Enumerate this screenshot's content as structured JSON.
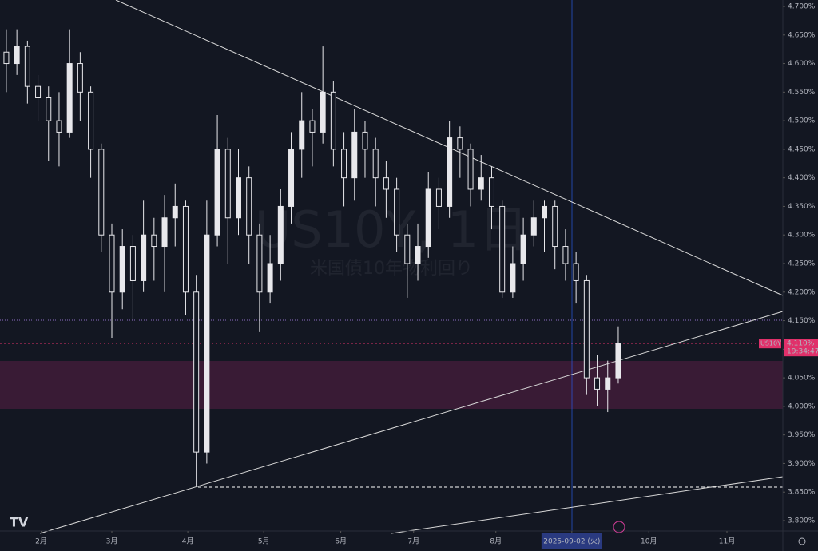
{
  "chart_data": {
    "type": "candlestick",
    "symbol": "US10Y",
    "watermark": "US10Y, 1日",
    "watermark_sub": "米国債10年物利回り",
    "color": "#e8e8ec",
    "zone_color": "#e8e8ec",
    "last_value": {
      "value": 4.11,
      "label": "4.110%"
    },
    "countdown": "19:34:47",
    "xlim": [
      -0.6,
      73.6
    ],
    "ylim": [
      3.8,
      4.7
    ],
    "xticks": [
      {
        "value": 3.3,
        "label": "2月"
      },
      {
        "value": 10,
        "label": "3月"
      },
      {
        "value": 17.2,
        "label": "4月"
      },
      {
        "value": 24.4,
        "label": "5月"
      },
      {
        "value": 31.7,
        "label": "6月"
      },
      {
        "value": 38.6,
        "label": "7月"
      },
      {
        "value": 46.4,
        "label": "8月"
      },
      {
        "value": 53.6,
        "label": "2025-09-02 (火)"
      },
      {
        "value": 60.9,
        "label": "10月"
      },
      {
        "value": 68.3,
        "label": "11月"
      }
    ],
    "yticks": [
      {
        "value": 3.8,
        "label": "3.800%"
      },
      {
        "value": 3.85,
        "label": "3.850%"
      },
      {
        "value": 3.9,
        "label": "3.900%"
      },
      {
        "value": 3.95,
        "label": "3.950%"
      },
      {
        "value": 4.0,
        "label": "4.000%"
      },
      {
        "value": 4.05,
        "label": "4.050%"
      },
      {
        "value": 4.1,
        "label": "4.100%"
      },
      {
        "value": 4.15,
        "label": "4.150%"
      },
      {
        "value": 4.2,
        "label": "4.200%"
      },
      {
        "value": 4.25,
        "label": "4.250%"
      },
      {
        "value": 4.3,
        "label": "4.300%"
      },
      {
        "value": 4.35,
        "label": "4.350%"
      },
      {
        "value": 4.4,
        "label": "4.400%"
      },
      {
        "value": 4.45,
        "label": "4.450%"
      },
      {
        "value": 4.5,
        "label": "4.500%"
      },
      {
        "value": 4.55,
        "label": "4.550%"
      },
      {
        "value": 4.6,
        "label": "4.600%"
      },
      {
        "value": 4.65,
        "label": "4.650%"
      },
      {
        "value": 4.7,
        "label": "4.700%"
      }
    ],
    "candles": [
      [
        4.62,
        4.66,
        4.55,
        4.6
      ],
      [
        4.6,
        4.66,
        4.58,
        4.63
      ],
      [
        4.63,
        4.64,
        4.53,
        4.56
      ],
      [
        4.56,
        4.58,
        4.5,
        4.54
      ],
      [
        4.54,
        4.56,
        4.43,
        4.5
      ],
      [
        4.5,
        4.55,
        4.42,
        4.48
      ],
      [
        4.48,
        4.66,
        4.47,
        4.6
      ],
      [
        4.6,
        4.62,
        4.5,
        4.55
      ],
      [
        4.55,
        4.56,
        4.4,
        4.45
      ],
      [
        4.45,
        4.46,
        4.27,
        4.3
      ],
      [
        4.3,
        4.32,
        4.12,
        4.2
      ],
      [
        4.2,
        4.31,
        4.17,
        4.28
      ],
      [
        4.28,
        4.3,
        4.15,
        4.22
      ],
      [
        4.22,
        4.36,
        4.2,
        4.3
      ],
      [
        4.3,
        4.33,
        4.22,
        4.28
      ],
      [
        4.28,
        4.37,
        4.2,
        4.33
      ],
      [
        4.33,
        4.39,
        4.28,
        4.35
      ],
      [
        4.35,
        4.36,
        4.16,
        4.2
      ],
      [
        4.2,
        4.23,
        3.86,
        3.92
      ],
      [
        3.92,
        4.36,
        3.9,
        4.3
      ],
      [
        4.3,
        4.51,
        4.28,
        4.45
      ],
      [
        4.45,
        4.47,
        4.25,
        4.33
      ],
      [
        4.33,
        4.45,
        4.3,
        4.4
      ],
      [
        4.4,
        4.42,
        4.25,
        4.3
      ],
      [
        4.3,
        4.32,
        4.13,
        4.2
      ],
      [
        4.2,
        4.3,
        4.18,
        4.25
      ],
      [
        4.25,
        4.38,
        4.22,
        4.35
      ],
      [
        4.35,
        4.48,
        4.32,
        4.45
      ],
      [
        4.45,
        4.55,
        4.4,
        4.5
      ],
      [
        4.5,
        4.52,
        4.42,
        4.48
      ],
      [
        4.48,
        4.63,
        4.46,
        4.55
      ],
      [
        4.55,
        4.57,
        4.42,
        4.45
      ],
      [
        4.45,
        4.48,
        4.35,
        4.4
      ],
      [
        4.4,
        4.52,
        4.36,
        4.48
      ],
      [
        4.48,
        4.5,
        4.4,
        4.45
      ],
      [
        4.45,
        4.47,
        4.35,
        4.4
      ],
      [
        4.4,
        4.43,
        4.33,
        4.38
      ],
      [
        4.38,
        4.4,
        4.27,
        4.3
      ],
      [
        4.3,
        4.32,
        4.19,
        4.25
      ],
      [
        4.25,
        4.32,
        4.22,
        4.28
      ],
      [
        4.28,
        4.41,
        4.26,
        4.38
      ],
      [
        4.38,
        4.4,
        4.31,
        4.35
      ],
      [
        4.35,
        4.5,
        4.33,
        4.47
      ],
      [
        4.47,
        4.49,
        4.4,
        4.45
      ],
      [
        4.45,
        4.46,
        4.35,
        4.38
      ],
      [
        4.38,
        4.44,
        4.36,
        4.4
      ],
      [
        4.4,
        4.42,
        4.31,
        4.35
      ],
      [
        4.35,
        4.36,
        4.19,
        4.2
      ],
      [
        4.2,
        4.28,
        4.19,
        4.25
      ],
      [
        4.25,
        4.33,
        4.22,
        4.3
      ],
      [
        4.3,
        4.36,
        4.28,
        4.33
      ],
      [
        4.33,
        4.36,
        4.27,
        4.35
      ],
      [
        4.35,
        4.36,
        4.24,
        4.28
      ],
      [
        4.28,
        4.31,
        4.22,
        4.25
      ],
      [
        4.25,
        4.27,
        4.18,
        4.22
      ],
      [
        4.22,
        4.23,
        4.02,
        4.05
      ],
      [
        4.05,
        4.09,
        4.0,
        4.03
      ],
      [
        4.03,
        4.08,
        3.99,
        4.05
      ],
      [
        4.05,
        4.14,
        4.04,
        4.11
      ]
    ]
  }
}
